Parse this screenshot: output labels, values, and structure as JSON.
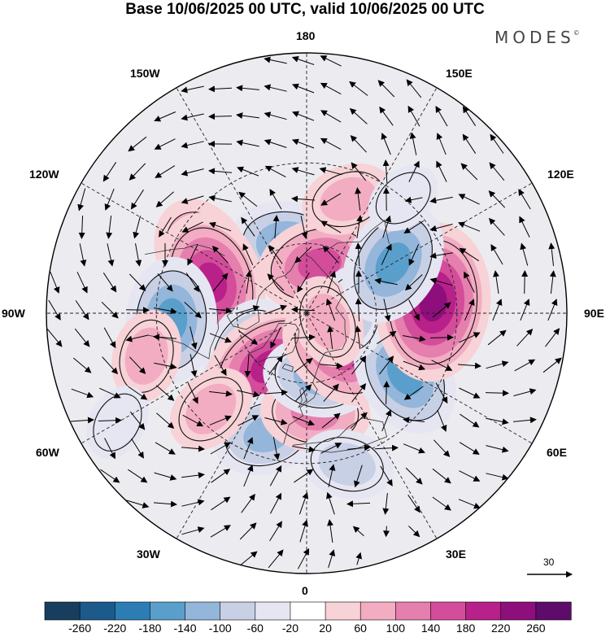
{
  "title": "Base 10/06/2025 00 UTC, valid 10/06/2025 00 UTC",
  "brand": "MODES",
  "brand_mark": "©",
  "longitude_labels": {
    "lon_180": "180",
    "lon_150e": "150E",
    "lon_120e": "120E",
    "lon_90e": "90E",
    "lon_60e": "60E",
    "lon_30e": "30E",
    "lon_0": "0",
    "lon_30w": "30W",
    "lon_60w": "60W",
    "lon_90w": "90W",
    "lon_120w": "120W",
    "lon_150w": "150W"
  },
  "reference_vector": "30",
  "colorbar": {
    "ticks": [
      "-260",
      "-220",
      "-180",
      "-140",
      "-100",
      "-60",
      "-20",
      "20",
      "60",
      "100",
      "140",
      "180",
      "220",
      "260"
    ],
    "colors": [
      "#173e5f",
      "#1c5a8c",
      "#2d7db5",
      "#5a9fcc",
      "#93b6da",
      "#c8d0e6",
      "#e6e6f2",
      "#ffffff",
      "#f7d2d6",
      "#f2adc2",
      "#e57fae",
      "#d34d9b",
      "#b8208a",
      "#8e0e7c",
      "#5e0b6c"
    ]
  },
  "anomalies": [
    {
      "lon": -167,
      "lat": 61,
      "value": -150
    },
    {
      "lon": 165,
      "lat": 68,
      "value": 150
    },
    {
      "lon": 160,
      "lat": 40,
      "value": 60
    },
    {
      "lon": -118,
      "lat": 42,
      "value": 150
    },
    {
      "lon": -108,
      "lat": 48,
      "value": 180
    },
    {
      "lon": -87,
      "lat": 35,
      "value": -170
    },
    {
      "lon": -58,
      "lat": 60,
      "value": -110
    },
    {
      "lon": -35,
      "lat": 62,
      "value": 200
    },
    {
      "lon": -18,
      "lat": 38,
      "value": -130
    },
    {
      "lon": 5,
      "lat": 48,
      "value": 100
    },
    {
      "lon": 10,
      "lat": 62,
      "value": -120
    },
    {
      "lon": 40,
      "lat": 68,
      "value": 160
    },
    {
      "lon": 58,
      "lat": 42,
      "value": -170
    },
    {
      "lon": 90,
      "lat": 70,
      "value": -90
    },
    {
      "lon": 95,
      "lat": 38,
      "value": 220
    },
    {
      "lon": 68,
      "lat": 80,
      "value": 70
    },
    {
      "lon": 120,
      "lat": 48,
      "value": -140
    },
    {
      "lon": 15,
      "lat": 28,
      "value": -70
    },
    {
      "lon": -75,
      "lat": 25,
      "value": 60
    },
    {
      "lon": -45,
      "lat": 35,
      "value": 60
    },
    {
      "lon": -60,
      "lat": 10,
      "value": -40
    },
    {
      "lon": 140,
      "lat": 30,
      "value": -40
    }
  ]
}
